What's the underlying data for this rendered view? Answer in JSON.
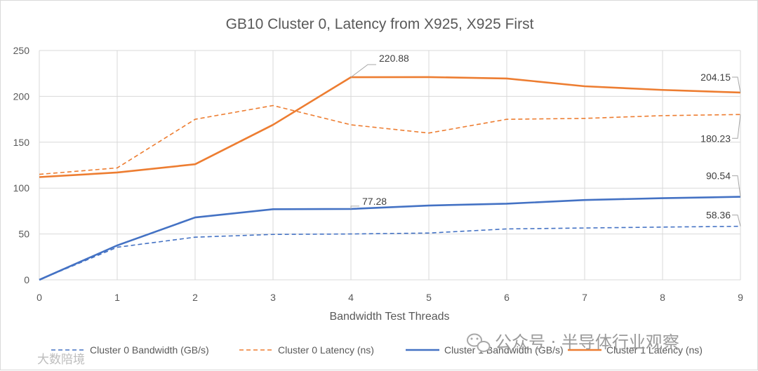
{
  "chart_data": {
    "type": "line",
    "title": "GB10 Cluster 0, Latency from X925, X925 First",
    "xlabel": "Bandwidth Test Threads",
    "ylabel": "",
    "x": [
      0,
      1,
      2,
      3,
      4,
      5,
      6,
      7,
      8,
      9
    ],
    "xlim": [
      0,
      9
    ],
    "ylim": [
      0,
      250
    ],
    "yticks": [
      0,
      50,
      100,
      150,
      200,
      250
    ],
    "grid": true,
    "legend_position": "bottom",
    "series": [
      {
        "name": "Cluster 0 Bandwidth (GB/s)",
        "color": "#4472C4",
        "dash": "dashed",
        "values": [
          0,
          35.5,
          46.5,
          49.5,
          50,
          51,
          55.5,
          56.5,
          57.5,
          58.36
        ]
      },
      {
        "name": "Cluster 0 Latency (ns)",
        "color": "#ED7D31",
        "dash": "dashed",
        "values": [
          115,
          122,
          175,
          190,
          169,
          160,
          175,
          176,
          179,
          180.23
        ]
      },
      {
        "name": "Cluster 1 Bandwidth (GB/s)",
        "color": "#4472C4",
        "dash": "solid",
        "values": [
          0,
          37.5,
          68,
          77,
          77.28,
          81,
          83,
          87,
          89,
          90.54
        ]
      },
      {
        "name": "Cluster 1 Latency (ns)",
        "color": "#ED7D31",
        "dash": "solid",
        "values": [
          112,
          117,
          126,
          169,
          220.88,
          221,
          219.5,
          211,
          207,
          204.15
        ]
      }
    ],
    "annotations": [
      {
        "text": "220.88",
        "series": 3,
        "index": 4
      },
      {
        "text": "204.15",
        "series": 3,
        "index": 9
      },
      {
        "text": "180.23",
        "series": 1,
        "index": 9
      },
      {
        "text": "77.28",
        "series": 2,
        "index": 4
      },
      {
        "text": "90.54",
        "series": 2,
        "index": 9
      },
      {
        "text": "58.36",
        "series": 0,
        "index": 9
      }
    ]
  },
  "watermark": {
    "wechat_account": "公众号 · 半导体行业观察",
    "corner_text": "大数陪境",
    "wechat_icon": "wechat-icon"
  }
}
